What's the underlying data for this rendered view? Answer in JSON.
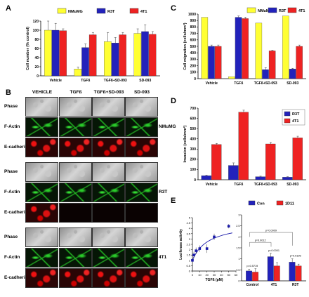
{
  "panels": {
    "A": {
      "letter": "A",
      "legend": [
        "NMuMG",
        "R3T",
        "4T1"
      ],
      "colors": [
        "#ffff33",
        "#2222bb",
        "#ee2222"
      ],
      "ylabel": "Cell number (% control)",
      "yticks": [
        "0",
        "20",
        "40",
        "60",
        "80",
        "100",
        "120"
      ],
      "categories": [
        "Vehicle",
        "TGFß",
        "TGFß+SD-093",
        "SD-093"
      ]
    },
    "B": {
      "letter": "B",
      "columns": [
        "VEHICLE",
        "TGFß",
        "TGFß+SD-093",
        "SD-093"
      ],
      "rows": [
        "Phase",
        "F-Actin",
        "E-cadherin"
      ],
      "strains": [
        "NMuMG",
        "R3T",
        "4T1"
      ]
    },
    "C": {
      "letter": "C",
      "legend": [
        "NMuMG",
        "R3T",
        "4T1"
      ],
      "ylabel": "Cell migration (cells/mm²)",
      "yticks": [
        "0",
        "100",
        "200",
        "300",
        "400",
        "500",
        "600",
        "700",
        "800",
        "900",
        "1000"
      ],
      "categories": [
        "Vehicle",
        "TGFß",
        "TGFß+SD-093",
        "SD-093"
      ]
    },
    "D": {
      "letter": "D",
      "legend": [
        "R3T",
        "4T1"
      ],
      "ylabel": "Invasion (cells/mm²)",
      "yticks": [
        "0",
        "100",
        "200",
        "300",
        "400",
        "500",
        "600",
        "700"
      ],
      "categories": [
        "Vehicle",
        "TGFß",
        "TGFß+SD-093",
        "SD-093"
      ]
    },
    "E": {
      "letter": "E",
      "line_ylabel": "Luciferase activity",
      "line_xlabel": "TGFß (pM)",
      "line_yticks": [
        "0",
        "0.5",
        "1",
        "1.5",
        "2",
        "2.5",
        "3",
        "3.5",
        "4",
        "4.5",
        "5"
      ],
      "line_xticks": [
        "0",
        "10",
        "20",
        "30",
        "40",
        "50",
        "60"
      ],
      "legend": [
        "Con",
        "1D11"
      ],
      "bar_yticks": [
        "0",
        "0.5",
        "1",
        "1.5",
        "2",
        "2.5",
        "3"
      ],
      "bar_categories": [
        "Control",
        "4T1",
        "R3T"
      ],
      "annotations": [
        "p=0.5719",
        "p=0.0001",
        "p=0.0195",
        "p=0.0012",
        "p=0.0009"
      ]
    }
  },
  "chart_data": [
    {
      "type": "bar",
      "panel": "A",
      "categories": [
        "Vehicle",
        "TGFß",
        "TGFß+SD-093",
        "SD-093"
      ],
      "series": [
        {
          "name": "NMuMG",
          "values": [
            100,
            15,
            75,
            93
          ],
          "errors": [
            20,
            4,
            20,
            10
          ]
        },
        {
          "name": "R3T",
          "values": [
            100,
            62,
            72,
            97
          ],
          "errors": [
            15,
            8,
            12,
            15
          ]
        },
        {
          "name": "4T1",
          "values": [
            99,
            90,
            90,
            91
          ],
          "errors": [
            4,
            5,
            5,
            6
          ]
        }
      ],
      "ylabel": "Cell number (% control)",
      "ylim": [
        0,
        120
      ]
    },
    {
      "type": "bar",
      "panel": "C",
      "categories": [
        "Vehicle",
        "TGFß",
        "TGFß+SD-093",
        "SD-093"
      ],
      "series": [
        {
          "name": "NMuMG",
          "values": [
            950,
            30,
            860,
            970
          ],
          "errors": [
            0,
            0,
            0,
            0
          ]
        },
        {
          "name": "R3T",
          "values": [
            500,
            950,
            140,
            150
          ],
          "errors": [
            20,
            20,
            30,
            10
          ]
        },
        {
          "name": "4T1",
          "values": [
            500,
            930,
            430,
            500
          ],
          "errors": [
            20,
            20,
            10,
            20
          ]
        }
      ],
      "ylabel": "Cell migration (cells/mm²)",
      "ylim": [
        0,
        1000
      ]
    },
    {
      "type": "bar",
      "panel": "D",
      "categories": [
        "Vehicle",
        "TGFß",
        "TGFß+SD-093",
        "SD-093"
      ],
      "series": [
        {
          "name": "R3T",
          "values": [
            40,
            140,
            30,
            25
          ],
          "errors": [
            5,
            25,
            5,
            5
          ]
        },
        {
          "name": "4T1",
          "values": [
            345,
            660,
            350,
            410
          ],
          "errors": [
            10,
            20,
            15,
            15
          ]
        }
      ],
      "ylabel": "Invasion (cells/mm²)",
      "ylim": [
        0,
        700
      ]
    },
    {
      "type": "line",
      "panel": "E-left",
      "x": [
        0,
        2,
        5,
        10,
        20,
        30,
        50
      ],
      "y": [
        1,
        1.5,
        1.9,
        2.1,
        2.1,
        3.2,
        4.2
      ],
      "errors": [
        0.2,
        0.3,
        0.3,
        0.3,
        0.4,
        0.3,
        0.2
      ],
      "xlabel": "TGFß (pM)",
      "ylabel": "Luciferase activity",
      "xlim": [
        0,
        60
      ],
      "ylim": [
        0,
        5
      ]
    },
    {
      "type": "bar",
      "panel": "E-right",
      "categories": [
        "Control",
        "4T1",
        "R3T"
      ],
      "series": [
        {
          "name": "Con",
          "values": [
            0.45,
            1.1,
            0.85
          ],
          "errors": [
            0.08,
            0.15,
            0.15
          ]
        },
        {
          "name": "1D11",
          "values": [
            0.4,
            0.68,
            0.68
          ],
          "errors": [
            0.15,
            0.15,
            0.08
          ]
        }
      ],
      "ylim": [
        0,
        3
      ]
    }
  ]
}
